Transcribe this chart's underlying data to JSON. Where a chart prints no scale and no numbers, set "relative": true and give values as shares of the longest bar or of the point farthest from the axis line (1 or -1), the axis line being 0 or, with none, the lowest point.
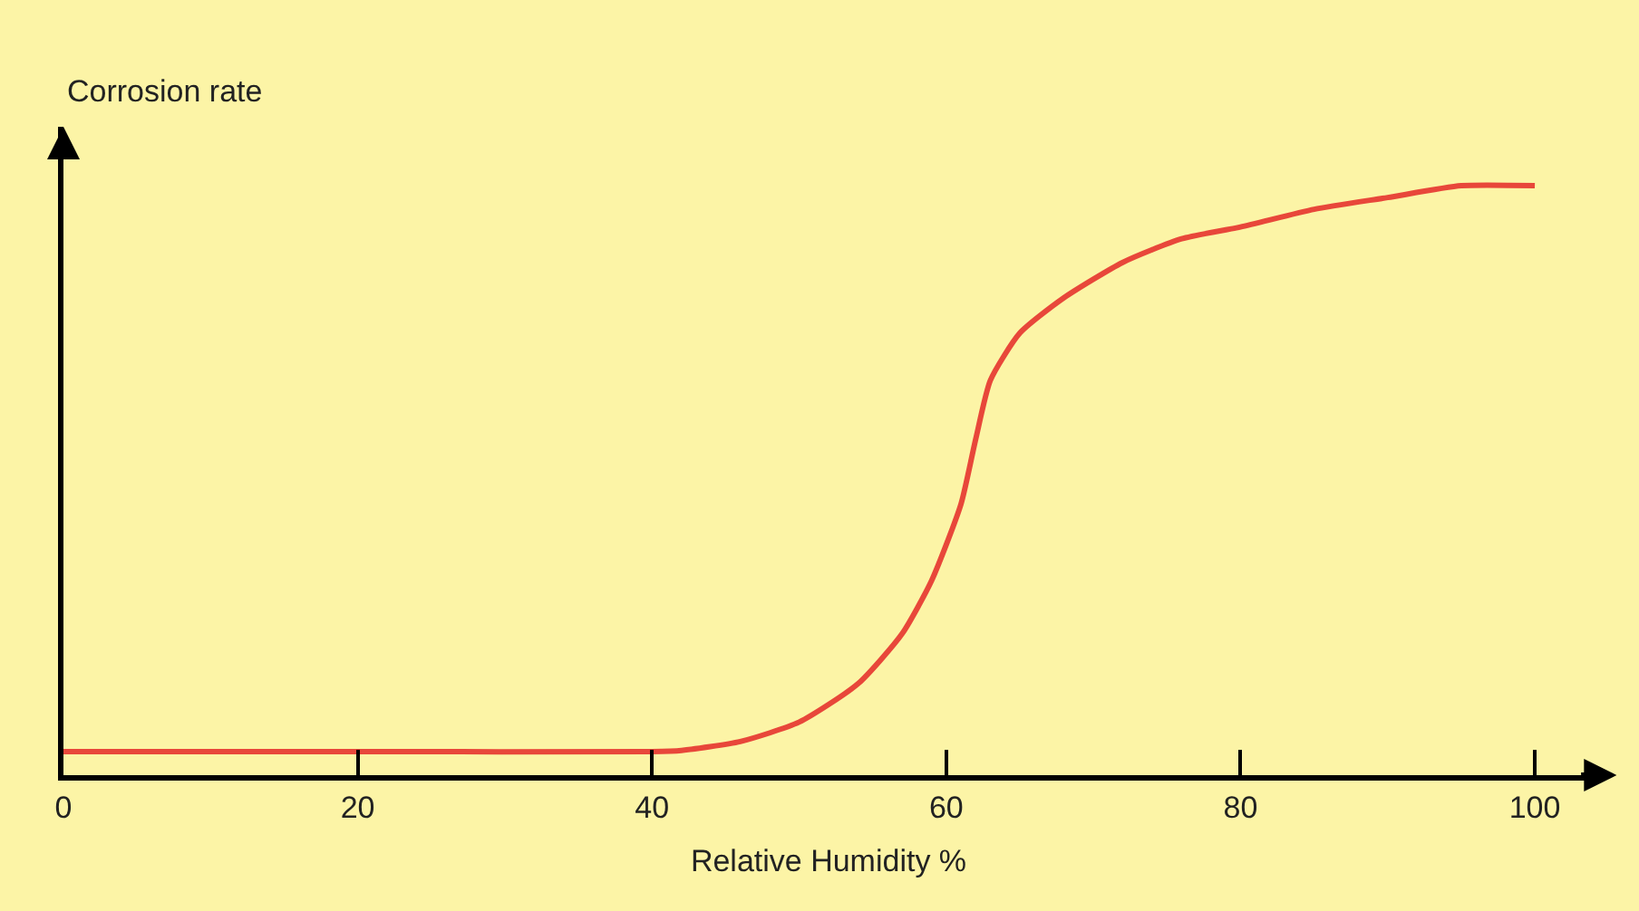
{
  "chart_data": {
    "type": "line",
    "relative": true,
    "xlabel": "Relative Humidity %",
    "ylabel": "Corrosion rate",
    "xlim": [
      0,
      104
    ],
    "xticks": [
      0,
      20,
      40,
      60,
      80,
      100
    ],
    "x": [
      0,
      20,
      40,
      42,
      46,
      50,
      54,
      57,
      59,
      61,
      62,
      63,
      65,
      68,
      72,
      76,
      80,
      85,
      90,
      95,
      100
    ],
    "series": [
      {
        "color": "#e8473a",
        "values": [
          0.04,
          0.04,
          0.04,
          0.042,
          0.057,
          0.09,
          0.155,
          0.24,
          0.33,
          0.46,
          0.57,
          0.67,
          0.75,
          0.81,
          0.87,
          0.91,
          0.93,
          0.96,
          0.98,
          1.0,
          1.0
        ]
      }
    ],
    "grid": false,
    "legend": false
  }
}
